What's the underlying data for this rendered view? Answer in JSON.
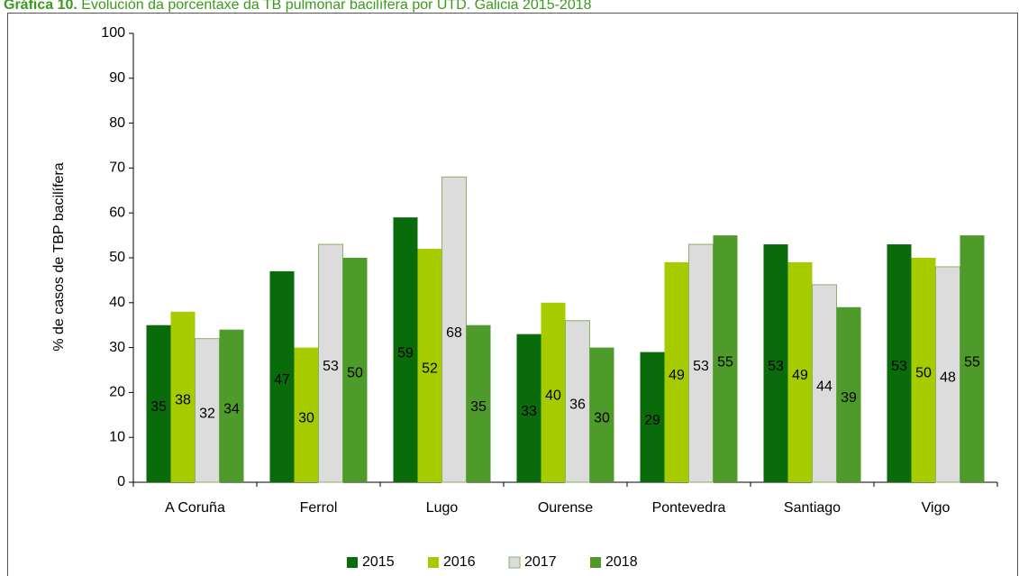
{
  "chart_data": {
    "type": "bar",
    "title_label": "Gráfica 10.",
    "title": "Evolución da porcentaxe da TB pulmonar bacilífera por UTD. Galicia 2015-2018",
    "y_label": "% de casos de TBP bacilífera",
    "categories": [
      "A Coruña",
      "Ferrol",
      "Lugo",
      "Ourense",
      "Pontevedra",
      "Santiago",
      "Vigo"
    ],
    "series": [
      {
        "name": "2015",
        "color": "#0a6b0a",
        "label_color": "#ffffff",
        "values": [
          35,
          47,
          59,
          33,
          29,
          53,
          53
        ]
      },
      {
        "name": "2016",
        "color": "#a6cc00",
        "label_color": "#ffffff",
        "values": [
          38,
          30,
          52,
          40,
          49,
          49,
          50
        ]
      },
      {
        "name": "2017",
        "color": "#dcdcdc",
        "label_color": "#000000",
        "values": [
          32,
          53,
          68,
          36,
          53,
          44,
          48
        ]
      },
      {
        "name": "2018",
        "color": "#4e9a2a",
        "label_color": "#000000",
        "values": [
          34,
          50,
          35,
          30,
          55,
          39,
          55
        ]
      }
    ],
    "ylim": [
      0,
      100
    ],
    "yticks": [
      0,
      10,
      20,
      30,
      40,
      50,
      60,
      70,
      80,
      90,
      100
    ],
    "grid": false
  }
}
